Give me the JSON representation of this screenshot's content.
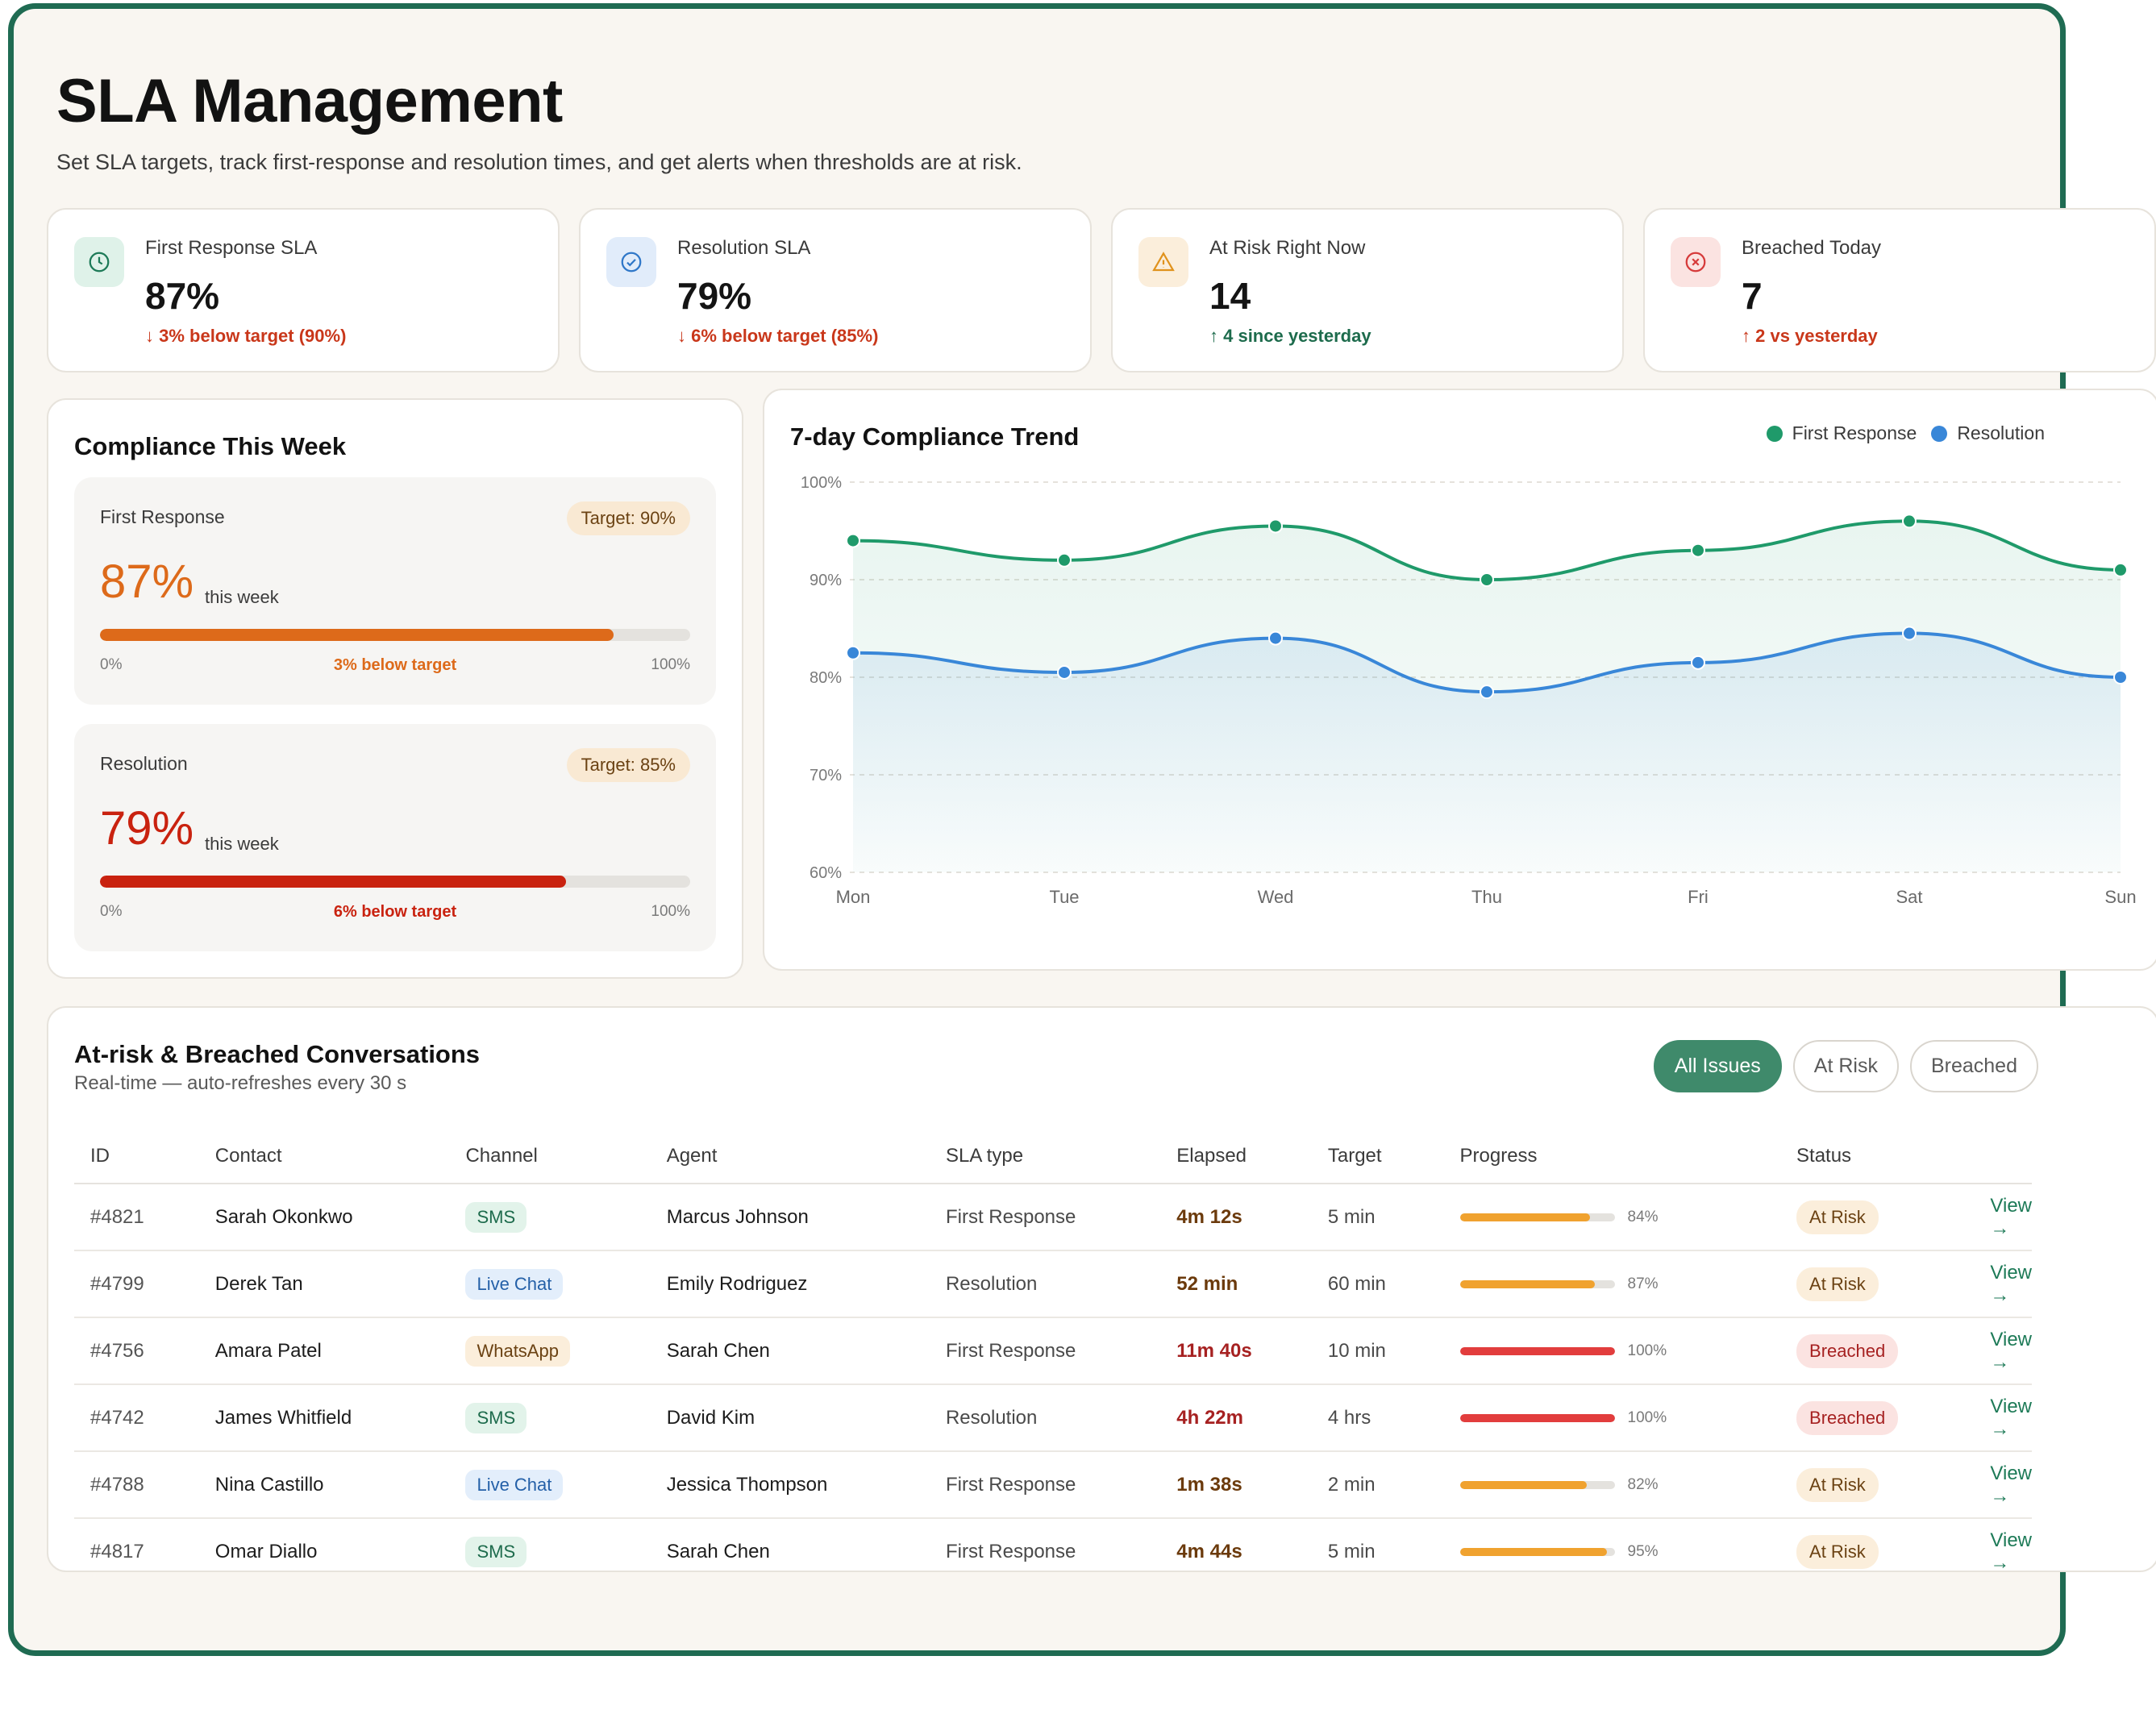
{
  "page": {
    "title": "SLA Management",
    "subtitle": "Set SLA targets, track first-response and resolution times, and get alerts when thresholds are at risk."
  },
  "kpis": [
    {
      "label": "First Response SLA",
      "value": "87%",
      "delta": "↓ 3% below target (90%)",
      "icon": "clock-icon",
      "tone": "negative"
    },
    {
      "label": "Resolution SLA",
      "value": "79%",
      "delta": "↓ 6% below target (85%)",
      "icon": "check-circle-icon",
      "tone": "negative"
    },
    {
      "label": "At Risk Right Now",
      "value": "14",
      "delta": "↑ 4 since yesterday",
      "icon": "warning-icon",
      "tone": "positive"
    },
    {
      "label": "Breached Today",
      "value": "7",
      "delta": "↑ 2 vs yesterday",
      "icon": "x-circle-icon",
      "tone": "negative"
    }
  ],
  "week": {
    "title": "Compliance This Week",
    "metrics": [
      {
        "label": "First Response",
        "target": "Target: 90%",
        "value": "87%",
        "suffix": "this week",
        "fill": 0.87,
        "min": "0%",
        "max": "100%",
        "note": "3% below target",
        "color": "#dd6a1a"
      },
      {
        "label": "Resolution",
        "target": "Target: 85%",
        "value": "79%",
        "suffix": "this week",
        "fill": 0.79,
        "min": "0%",
        "max": "100%",
        "note": "6% below target",
        "color": "#c9220f"
      }
    ]
  },
  "trend": {
    "title": "7-day Compliance Trend",
    "legend": [
      {
        "name": "First Response",
        "color": "#1f9a6a"
      },
      {
        "name": "Resolution",
        "color": "#3987d8"
      }
    ]
  },
  "chart_data": {
    "type": "line",
    "title": "7-day Compliance Trend",
    "categories": [
      "Mon",
      "Tue",
      "Wed",
      "Thu",
      "Fri",
      "Sat",
      "Sun"
    ],
    "series": [
      {
        "name": "First Response",
        "color": "#1f9a6a",
        "values": [
          94,
          92,
          95.5,
          90,
          93,
          96,
          91
        ]
      },
      {
        "name": "Resolution",
        "color": "#3987d8",
        "values": [
          82.5,
          80.5,
          84,
          78.5,
          81.5,
          84.5,
          80
        ]
      }
    ],
    "ylim": [
      60,
      100
    ],
    "yticks": [
      "100%",
      "90%",
      "80%",
      "70%",
      "60%"
    ],
    "ytick_values": [
      100,
      90,
      80,
      70,
      60
    ],
    "grid": true,
    "legend_position": "top-right"
  },
  "issues": {
    "title": "At-risk & Breached Conversations",
    "subtitle": "Real-time — auto-refreshes every 30 s",
    "filters": [
      "All Issues",
      "At Risk",
      "Breached"
    ],
    "active_filter": "All Issues",
    "columns": [
      "ID",
      "Contact",
      "Channel",
      "Agent",
      "SLA type",
      "Elapsed",
      "Target",
      "Progress",
      "Status",
      ""
    ],
    "rows": [
      {
        "id": "#4821",
        "contact": "Sarah Okonkwo",
        "channel": "SMS",
        "agent": "Marcus Johnson",
        "sla": "First Response",
        "elapsed": "4m 12s",
        "target": "5 min",
        "progress": 84,
        "pct": "84%",
        "status": "At Risk",
        "action": "View →"
      },
      {
        "id": "#4799",
        "contact": "Derek Tan",
        "channel": "Live Chat",
        "agent": "Emily Rodriguez",
        "sla": "Resolution",
        "elapsed": "52 min",
        "target": "60 min",
        "progress": 87,
        "pct": "87%",
        "status": "At Risk",
        "action": "View →"
      },
      {
        "id": "#4756",
        "contact": "Amara Patel",
        "channel": "WhatsApp",
        "agent": "Sarah Chen",
        "sla": "First Response",
        "elapsed": "11m 40s",
        "target": "10 min",
        "progress": 100,
        "pct": "100%",
        "status": "Breached",
        "action": "View →"
      },
      {
        "id": "#4742",
        "contact": "James Whitfield",
        "channel": "SMS",
        "agent": "David Kim",
        "sla": "Resolution",
        "elapsed": "4h 22m",
        "target": "4 hrs",
        "progress": 100,
        "pct": "100%",
        "status": "Breached",
        "action": "View →"
      },
      {
        "id": "#4788",
        "contact": "Nina Castillo",
        "channel": "Live Chat",
        "agent": "Jessica Thompson",
        "sla": "First Response",
        "elapsed": "1m 38s",
        "target": "2 min",
        "progress": 82,
        "pct": "82%",
        "status": "At Risk",
        "action": "View →"
      },
      {
        "id": "#4817",
        "contact": "Omar Diallo",
        "channel": "SMS",
        "agent": "Sarah Chen",
        "sla": "First Response",
        "elapsed": "4m 44s",
        "target": "5 min",
        "progress": 95,
        "pct": "95%",
        "status": "At Risk",
        "action": "View →"
      }
    ]
  },
  "colors": {
    "accent": "#1f6b52",
    "at_risk_bg": "#fbeedb",
    "at_risk_text": "#6b4213",
    "breached_bg": "#fbe3e1",
    "breached_text": "#a62121",
    "sms_bg": "#e2f3ea",
    "sms_text": "#1d6b4c",
    "livechat_bg": "#e3eefb",
    "livechat_text": "#2460a8",
    "whatsapp_bg": "#fbeedb",
    "whatsapp_text": "#6b4213",
    "progress_warn": "#f0a22f",
    "progress_breach": "#e23d3d"
  }
}
